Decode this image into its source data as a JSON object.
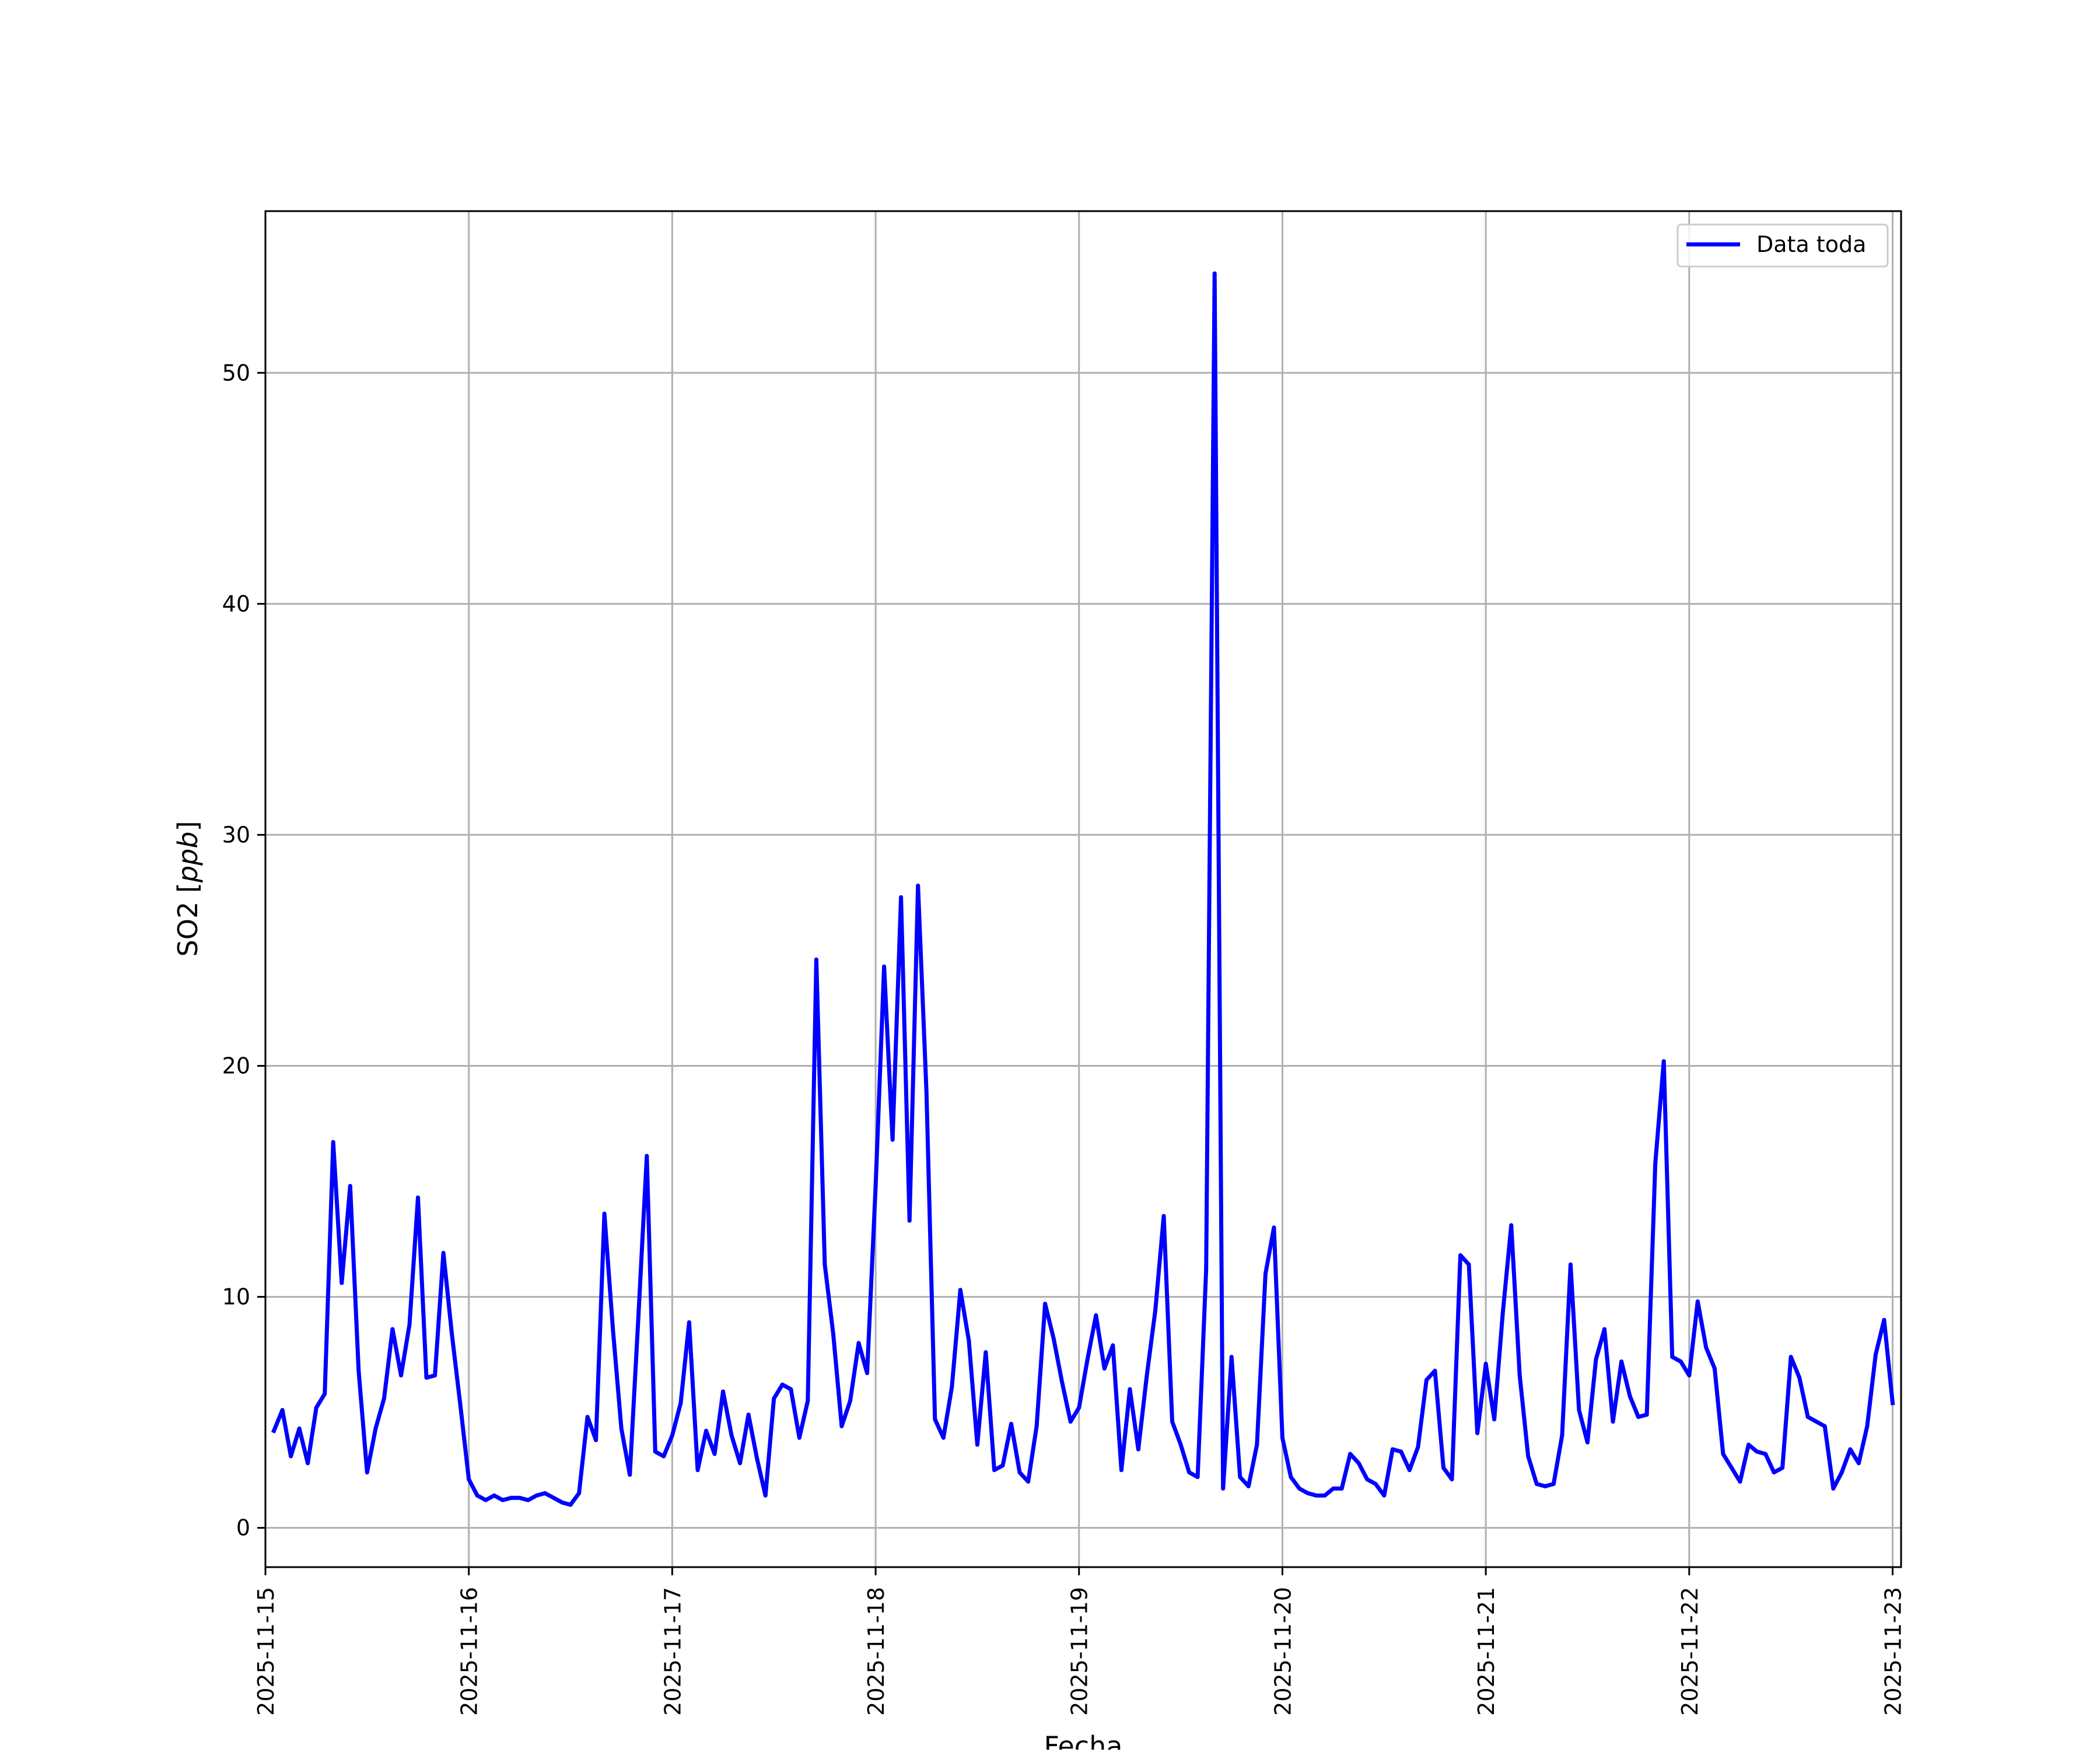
{
  "chart_data": {
    "type": "line",
    "xlabel": "Fecha",
    "ylabel_text": "SO2 [",
    "ylabel_unit": "ppb",
    "ylabel_close": "]",
    "x_range": [
      "2025-11-15T00:00",
      "2025-11-23T01:00"
    ],
    "x_ticks": [
      "2025-11-15",
      "2025-11-16",
      "2025-11-17",
      "2025-11-18",
      "2025-11-19",
      "2025-11-20",
      "2025-11-21",
      "2025-11-22",
      "2025-11-23"
    ],
    "ylim": [
      -1.7,
      57.0
    ],
    "y_ticks": [
      0,
      10,
      20,
      30,
      40,
      50
    ],
    "grid": true,
    "legend_position": "top-right",
    "series": [
      {
        "name": "Data toda",
        "color": "#0000ff",
        "x": [
          "2025-11-15T01:00",
          "2025-11-15T02:00",
          "2025-11-15T03:00",
          "2025-11-15T04:00",
          "2025-11-15T05:00",
          "2025-11-15T06:00",
          "2025-11-15T07:00",
          "2025-11-15T08:00",
          "2025-11-15T09:00",
          "2025-11-15T10:00",
          "2025-11-15T11:00",
          "2025-11-15T12:00",
          "2025-11-15T13:00",
          "2025-11-15T14:00",
          "2025-11-15T15:00",
          "2025-11-15T16:00",
          "2025-11-15T17:00",
          "2025-11-15T18:00",
          "2025-11-15T19:00",
          "2025-11-15T20:00",
          "2025-11-15T21:00",
          "2025-11-15T22:00",
          "2025-11-15T23:00",
          "2025-11-16T00:00",
          "2025-11-16T01:00",
          "2025-11-16T02:00",
          "2025-11-16T03:00",
          "2025-11-16T04:00",
          "2025-11-16T05:00",
          "2025-11-16T06:00",
          "2025-11-16T07:00",
          "2025-11-16T08:00",
          "2025-11-16T09:00",
          "2025-11-16T10:00",
          "2025-11-16T11:00",
          "2025-11-16T12:00",
          "2025-11-16T13:00",
          "2025-11-16T14:00",
          "2025-11-16T15:00",
          "2025-11-16T16:00",
          "2025-11-16T17:00",
          "2025-11-16T18:00",
          "2025-11-16T19:00",
          "2025-11-16T20:00",
          "2025-11-16T21:00",
          "2025-11-16T22:00",
          "2025-11-16T23:00",
          "2025-11-17T00:00",
          "2025-11-17T01:00",
          "2025-11-17T02:00",
          "2025-11-17T03:00",
          "2025-11-17T04:00",
          "2025-11-17T05:00",
          "2025-11-17T06:00",
          "2025-11-17T07:00",
          "2025-11-17T08:00",
          "2025-11-17T09:00",
          "2025-11-17T10:00",
          "2025-11-17T11:00",
          "2025-11-17T12:00",
          "2025-11-17T13:00",
          "2025-11-17T14:00",
          "2025-11-17T15:00",
          "2025-11-17T16:00",
          "2025-11-17T17:00",
          "2025-11-17T18:00",
          "2025-11-17T19:00",
          "2025-11-17T20:00",
          "2025-11-17T21:00",
          "2025-11-17T22:00",
          "2025-11-17T23:00",
          "2025-11-18T00:00",
          "2025-11-18T01:00",
          "2025-11-18T02:00",
          "2025-11-18T03:00",
          "2025-11-18T04:00",
          "2025-11-18T05:00",
          "2025-11-18T06:00",
          "2025-11-18T07:00",
          "2025-11-18T08:00",
          "2025-11-18T09:00",
          "2025-11-18T10:00",
          "2025-11-18T11:00",
          "2025-11-18T12:00",
          "2025-11-18T13:00",
          "2025-11-18T14:00",
          "2025-11-18T15:00",
          "2025-11-18T16:00",
          "2025-11-18T17:00",
          "2025-11-18T18:00",
          "2025-11-18T19:00",
          "2025-11-18T20:00",
          "2025-11-18T21:00",
          "2025-11-18T22:00",
          "2025-11-18T23:00",
          "2025-11-19T00:00",
          "2025-11-19T01:00",
          "2025-11-19T02:00",
          "2025-11-19T03:00",
          "2025-11-19T04:00",
          "2025-11-19T05:00",
          "2025-11-19T06:00",
          "2025-11-19T07:00",
          "2025-11-19T08:00",
          "2025-11-19T09:00",
          "2025-11-19T10:00",
          "2025-11-19T11:00",
          "2025-11-19T12:00",
          "2025-11-19T13:00",
          "2025-11-19T14:00",
          "2025-11-19T15:00",
          "2025-11-19T16:00",
          "2025-11-19T17:00",
          "2025-11-19T18:00",
          "2025-11-19T19:00",
          "2025-11-19T20:00",
          "2025-11-19T21:00",
          "2025-11-19T22:00",
          "2025-11-19T23:00",
          "2025-11-20T00:00",
          "2025-11-20T01:00",
          "2025-11-20T02:00",
          "2025-11-20T03:00",
          "2025-11-20T04:00",
          "2025-11-20T05:00",
          "2025-11-20T06:00",
          "2025-11-20T07:00",
          "2025-11-20T08:00",
          "2025-11-20T09:00",
          "2025-11-20T10:00",
          "2025-11-20T11:00",
          "2025-11-20T12:00",
          "2025-11-20T13:00",
          "2025-11-20T14:00",
          "2025-11-20T15:00",
          "2025-11-20T16:00",
          "2025-11-20T17:00",
          "2025-11-20T18:00",
          "2025-11-20T19:00",
          "2025-11-20T20:00",
          "2025-11-20T21:00",
          "2025-11-20T22:00",
          "2025-11-20T23:00",
          "2025-11-21T00:00",
          "2025-11-21T01:00",
          "2025-11-21T02:00",
          "2025-11-21T03:00",
          "2025-11-21T04:00",
          "2025-11-21T05:00",
          "2025-11-21T06:00",
          "2025-11-21T07:00",
          "2025-11-21T08:00",
          "2025-11-21T09:00",
          "2025-11-21T10:00",
          "2025-11-21T11:00",
          "2025-11-21T12:00",
          "2025-11-21T13:00",
          "2025-11-21T14:00",
          "2025-11-21T15:00",
          "2025-11-21T16:00",
          "2025-11-21T17:00",
          "2025-11-21T18:00",
          "2025-11-21T19:00",
          "2025-11-21T20:00",
          "2025-11-21T21:00",
          "2025-11-21T22:00",
          "2025-11-21T23:00",
          "2025-11-22T00:00",
          "2025-11-22T01:00",
          "2025-11-22T02:00",
          "2025-11-22T03:00",
          "2025-11-22T04:00",
          "2025-11-22T05:00",
          "2025-11-22T06:00",
          "2025-11-22T07:00",
          "2025-11-22T08:00",
          "2025-11-22T09:00",
          "2025-11-22T10:00",
          "2025-11-22T11:00",
          "2025-11-22T12:00",
          "2025-11-22T13:00",
          "2025-11-22T14:00",
          "2025-11-22T15:00",
          "2025-11-22T16:00",
          "2025-11-22T17:00",
          "2025-11-22T18:00",
          "2025-11-22T19:00",
          "2025-11-22T20:00",
          "2025-11-22T21:00",
          "2025-11-22T22:00",
          "2025-11-22T23:00",
          "2025-11-23T00:00"
        ],
        "y": [
          4.2,
          5.1,
          3.1,
          4.3,
          2.8,
          5.2,
          5.8,
          16.7,
          10.6,
          14.8,
          6.8,
          2.4,
          4.3,
          5.6,
          8.6,
          6.6,
          8.8,
          14.3,
          6.5,
          6.6,
          11.9,
          8.4,
          5.3,
          2.1,
          1.4,
          1.2,
          1.4,
          1.2,
          1.3,
          1.3,
          1.2,
          1.4,
          1.5,
          1.3,
          1.1,
          1.0,
          1.5,
          4.8,
          3.8,
          13.6,
          8.6,
          4.3,
          2.3,
          9.1,
          16.1,
          3.3,
          3.1,
          4.0,
          5.4,
          8.9,
          2.5,
          4.2,
          3.2,
          5.9,
          4.0,
          2.8,
          4.9,
          3.0,
          1.4,
          5.6,
          6.2,
          6.0,
          3.9,
          5.5,
          24.6,
          11.4,
          8.4,
          4.4,
          5.5,
          8.0,
          6.7,
          14.8,
          24.3,
          16.8,
          27.3,
          13.3,
          27.8,
          18.9,
          4.7,
          3.9,
          6.1,
          10.3,
          8.1,
          3.6,
          7.6,
          2.5,
          2.7,
          4.5,
          2.4,
          2.0,
          4.4,
          9.7,
          8.2,
          6.3,
          4.6,
          5.2,
          7.3,
          9.2,
          6.9,
          7.9,
          2.5,
          6.0,
          3.4,
          6.6,
          9.4,
          13.5,
          4.6,
          3.6,
          2.4,
          2.2,
          11.2,
          54.3,
          1.7,
          7.4,
          2.2,
          1.8,
          3.6,
          11.0,
          13.0,
          3.9,
          2.2,
          1.7,
          1.5,
          1.4,
          1.4,
          1.7,
          1.7,
          3.2,
          2.8,
          2.1,
          1.9,
          1.4,
          3.4,
          3.3,
          2.5,
          3.5,
          6.4,
          6.8,
          2.6,
          2.1,
          11.8,
          11.4,
          4.1,
          7.1,
          4.7,
          9.3,
          13.1,
          6.6,
          3.1,
          1.9,
          1.8,
          1.9,
          4.0,
          11.4,
          5.1,
          3.7,
          7.3,
          8.6,
          4.6,
          7.2,
          5.7,
          4.8,
          4.9,
          15.8,
          20.2,
          7.4,
          7.2,
          6.6,
          9.8,
          7.8,
          6.9,
          3.2,
          2.6,
          2.0,
          3.6,
          3.3,
          3.2,
          2.4,
          2.6,
          7.4,
          6.5,
          4.8,
          4.6,
          4.4,
          1.7,
          2.4,
          3.4,
          2.8,
          4.4,
          7.5,
          9.0,
          5.4
        ]
      }
    ]
  }
}
